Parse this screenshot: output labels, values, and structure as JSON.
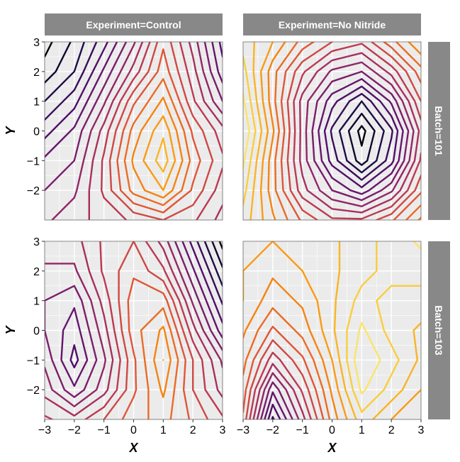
{
  "chart_data": {
    "type": "contour",
    "xlabel": "X",
    "ylabel": "Y",
    "xlim": [
      -3,
      3
    ],
    "ylim": [
      -3,
      3
    ],
    "x_ticks": [
      "−3",
      "−2",
      "−1",
      "0",
      "1",
      "2",
      "3"
    ],
    "y_ticks": [
      "3",
      "2",
      "1",
      "0",
      "−1",
      "−2"
    ],
    "x_tick_values": [
      -3,
      -2,
      -1,
      0,
      1,
      2,
      3
    ],
    "y_tick_values": [
      3,
      2,
      1,
      0,
      -1,
      -2
    ],
    "grid": true,
    "colormap": "inferno",
    "column_facets": [
      "Experiment=Control",
      "Experiment=No Nitride"
    ],
    "row_facets": [
      "Batch=101",
      "Batch=103"
    ],
    "grid_x": [
      -3,
      -2,
      -1,
      0,
      1,
      2,
      3
    ],
    "grid_y": [
      -3,
      -2,
      -1,
      0,
      1,
      2,
      3
    ],
    "panels": [
      {
        "experiment": "Control",
        "batch": "101",
        "z": [
          [
            9,
            10,
            11,
            12,
            13,
            12,
            10
          ],
          [
            8,
            9,
            12,
            16,
            18,
            14,
            11
          ],
          [
            7,
            8,
            12,
            17,
            20,
            15,
            12
          ],
          [
            5,
            7,
            11,
            16,
            19,
            14,
            11
          ],
          [
            3,
            5,
            9,
            14,
            17,
            12,
            8
          ],
          [
            1,
            3,
            7,
            11,
            15,
            11,
            6
          ],
          [
            0,
            2,
            5,
            9,
            14,
            10,
            5
          ]
        ]
      },
      {
        "experiment": "No Nitride",
        "batch": "101",
        "z": [
          [
            20,
            17,
            14,
            12,
            12,
            14,
            17
          ],
          [
            21,
            16,
            11,
            8,
            6,
            9,
            14
          ],
          [
            22,
            16,
            10,
            5,
            1,
            5,
            12
          ],
          [
            23,
            17,
            10,
            4,
            0,
            4,
            11
          ],
          [
            22,
            16,
            10,
            6,
            3,
            7,
            13
          ],
          [
            21,
            16,
            12,
            9,
            8,
            11,
            15
          ],
          [
            20,
            18,
            15,
            13,
            12,
            15,
            18
          ]
        ]
      },
      {
        "experiment": "Control",
        "batch": "103",
        "z": [
          [
            12,
            11,
            13,
            15,
            16,
            14,
            12
          ],
          [
            10,
            7,
            10,
            14,
            17,
            13,
            10
          ],
          [
            9,
            5,
            9,
            14,
            18,
            13,
            9
          ],
          [
            8,
            6,
            10,
            15,
            17,
            11,
            6
          ],
          [
            8,
            7,
            11,
            15,
            15,
            9,
            4
          ],
          [
            9,
            9,
            12,
            14,
            12,
            7,
            2
          ],
          [
            10,
            10,
            12,
            13,
            10,
            5,
            0
          ]
        ]
      },
      {
        "experiment": "No Nitride",
        "batch": "103",
        "z": [
          [
            14,
            4,
            10,
            16,
            20,
            18,
            17
          ],
          [
            15,
            7,
            12,
            17,
            22,
            20,
            18
          ],
          [
            16,
            11,
            14,
            18,
            23,
            21,
            19
          ],
          [
            17,
            14,
            16,
            19,
            22,
            20,
            19
          ],
          [
            18,
            16,
            17,
            19,
            21,
            20,
            20
          ],
          [
            18,
            17,
            18,
            19,
            20,
            21,
            21
          ],
          [
            18,
            18,
            18,
            19,
            20,
            21,
            22
          ]
        ]
      }
    ],
    "contour_levels": [
      0.5,
      1.75,
      3,
      4.25,
      5.5,
      6.75,
      8,
      9.25,
      10.5,
      11.75,
      13,
      14.25,
      15.5,
      16.75,
      18,
      19.25,
      20.5,
      21.75
    ],
    "color_range": [
      0,
      23
    ]
  }
}
